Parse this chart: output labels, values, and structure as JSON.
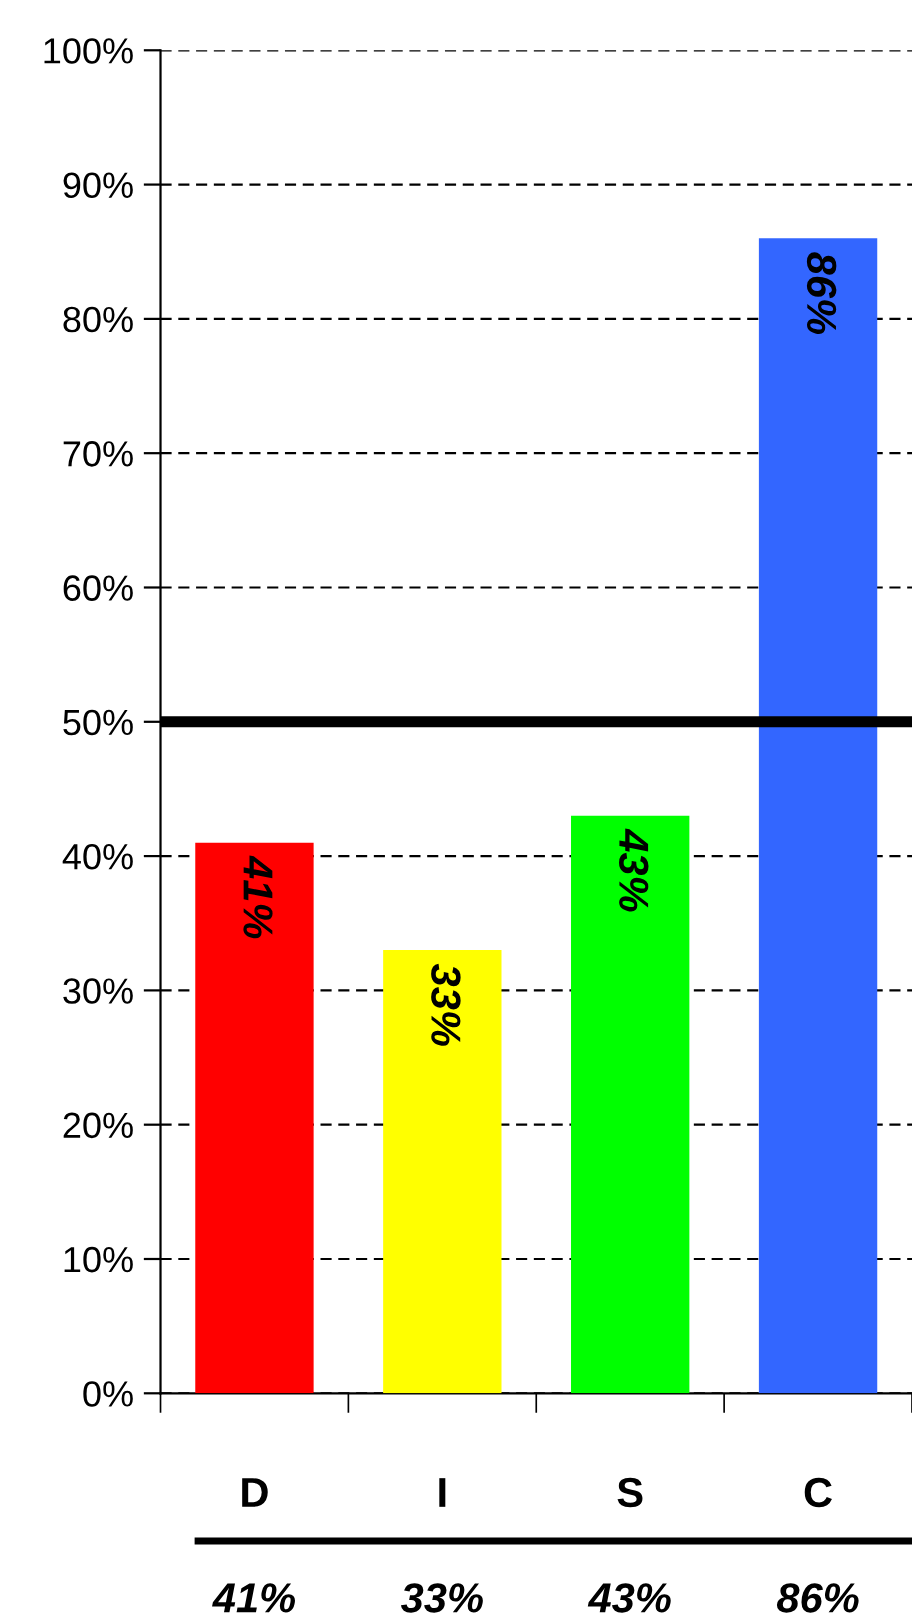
{
  "chart_data": {
    "type": "bar",
    "categories": [
      "D",
      "I",
      "S",
      "C"
    ],
    "values": [
      41,
      33,
      43,
      86
    ],
    "colors": [
      "#ff0000",
      "#ffff00",
      "#00ff00",
      "#3366ff"
    ],
    "value_labels": [
      "41%",
      "33%",
      "43%",
      "86%"
    ],
    "ylim": [
      0,
      100
    ],
    "yticks": [
      {
        "value": 0,
        "label": "0%"
      },
      {
        "value": 10,
        "label": "10%"
      },
      {
        "value": 20,
        "label": "20%"
      },
      {
        "value": 30,
        "label": "30%"
      },
      {
        "value": 40,
        "label": "40%"
      },
      {
        "value": 50,
        "label": "50%"
      },
      {
        "value": 60,
        "label": "60%"
      },
      {
        "value": 70,
        "label": "70%"
      },
      {
        "value": 80,
        "label": "80%"
      },
      {
        "value": 90,
        "label": "90%"
      },
      {
        "value": 100,
        "label": "100%"
      }
    ],
    "grid": "y",
    "ref_lines": [
      {
        "axis": "y",
        "value": 50,
        "color": "#000000",
        "line_style": "solid"
      }
    ]
  }
}
